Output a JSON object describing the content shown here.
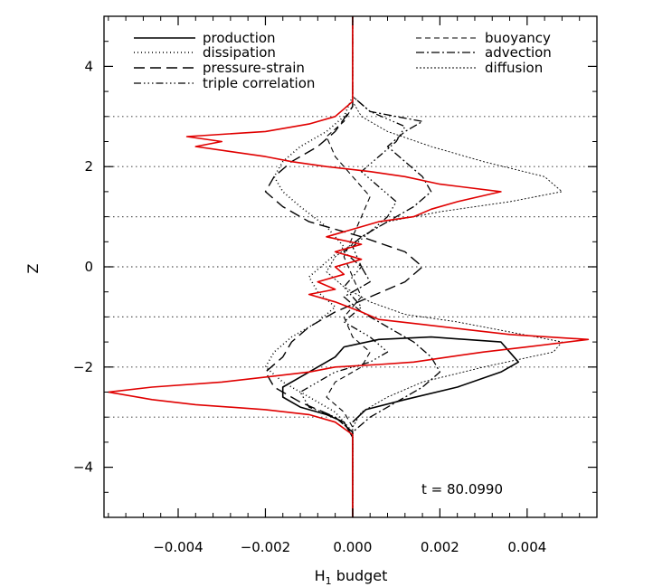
{
  "chart_data": {
    "type": "line",
    "orientation": "vertical-profile",
    "xlabel": "H",
    "xlabel_subscript": "1",
    "xlabel_rest": " budget",
    "ylabel": "Z",
    "xlim": [
      -0.0057,
      0.0056
    ],
    "ylim": [
      -5,
      5
    ],
    "xticks": [
      -0.004,
      -0.002,
      0.0,
      0.002,
      0.004
    ],
    "xtick_labels": [
      "−0.004",
      "−0.002",
      "0.000",
      "0.002",
      "0.004"
    ],
    "yticks": [
      -4,
      -2,
      0,
      2,
      4
    ],
    "ytick_labels": [
      "−4",
      "−2",
      "0",
      "2",
      "4"
    ],
    "reference_lines_z": [
      -3,
      -2,
      -1,
      0,
      1,
      2,
      3
    ],
    "annotation": "t  =  80.0990",
    "legend_placement": "top",
    "series": [
      {
        "name": "production",
        "color": "#000000",
        "dash": "solid",
        "width": 1.6,
        "points": [
          [
            0,
            -5
          ],
          [
            0,
            -3.4
          ],
          [
            -0.0002,
            -3.1
          ],
          [
            -0.0006,
            -2.95
          ],
          [
            -0.0012,
            -2.8
          ],
          [
            -0.0016,
            -2.6
          ],
          [
            -0.0016,
            -2.4
          ],
          [
            -0.0012,
            -2.2
          ],
          [
            -0.0008,
            -2.0
          ],
          [
            -0.0004,
            -1.8
          ],
          [
            -0.0002,
            -1.6
          ],
          [
            0.0006,
            -1.45
          ],
          [
            0.0018,
            -1.4
          ],
          [
            0.0034,
            -1.5
          ],
          [
            0.0036,
            -1.7
          ],
          [
            0.0038,
            -1.9
          ],
          [
            0.0034,
            -2.1
          ],
          [
            0.0024,
            -2.4
          ],
          [
            0.0012,
            -2.65
          ],
          [
            0.0003,
            -2.85
          ],
          [
            0.0,
            -3.1
          ]
        ]
      },
      {
        "name": "dissipation",
        "color": "#000000",
        "dash": "1,3",
        "width": 1.6,
        "points": [
          [
            0,
            -5
          ],
          [
            0,
            -3.3
          ],
          [
            -0.0004,
            -2.9
          ],
          [
            -0.001,
            -2.6
          ],
          [
            -0.0016,
            -2.3
          ],
          [
            -0.002,
            -2.0
          ],
          [
            -0.0018,
            -1.7
          ],
          [
            -0.0014,
            -1.4
          ],
          [
            -0.0008,
            -1.1
          ],
          [
            -0.0004,
            -0.8
          ],
          [
            -0.0008,
            -0.5
          ],
          [
            -0.001,
            -0.2
          ],
          [
            -0.0006,
            0.1
          ],
          [
            -0.0002,
            0.4
          ],
          [
            -0.0006,
            0.8
          ],
          [
            -0.0012,
            1.2
          ],
          [
            -0.0016,
            1.5
          ],
          [
            -0.0018,
            1.8
          ],
          [
            -0.0016,
            2.1
          ],
          [
            -0.0012,
            2.4
          ],
          [
            -0.0006,
            2.7
          ],
          [
            -0.0002,
            3.0
          ],
          [
            0,
            3.4
          ],
          [
            0,
            5
          ]
        ]
      },
      {
        "name": "pressure-strain",
        "color": "#000000",
        "dash": "12,6",
        "width": 1.4,
        "points": [
          [
            0,
            -5
          ],
          [
            0,
            -3.3
          ],
          [
            -0.0004,
            -3.0
          ],
          [
            -0.0012,
            -2.7
          ],
          [
            -0.0018,
            -2.4
          ],
          [
            -0.002,
            -2.1
          ],
          [
            -0.0016,
            -1.8
          ],
          [
            -0.0014,
            -1.5
          ],
          [
            -0.001,
            -1.2
          ],
          [
            -0.0004,
            -0.9
          ],
          [
            0.0004,
            -0.6
          ],
          [
            0.0012,
            -0.3
          ],
          [
            0.0016,
            0.0
          ],
          [
            0.0012,
            0.3
          ],
          [
            0.0002,
            0.6
          ],
          [
            -0.001,
            0.9
          ],
          [
            -0.0016,
            1.2
          ],
          [
            -0.002,
            1.5
          ],
          [
            -0.0018,
            1.8
          ],
          [
            -0.0014,
            2.1
          ],
          [
            -0.0008,
            2.4
          ],
          [
            -0.0004,
            2.7
          ],
          [
            0,
            3.2
          ],
          [
            0,
            5
          ]
        ]
      },
      {
        "name": "triple correlation",
        "color": "#000000",
        "dash": "8,3,1.5,3,1.5,3,1.5,3",
        "width": 1.3,
        "points": [
          [
            0,
            -5
          ],
          [
            0,
            -3.3
          ],
          [
            -0.0004,
            -3.0
          ],
          [
            -0.001,
            -2.8
          ],
          [
            -0.0012,
            -2.5
          ],
          [
            -0.0008,
            -2.3
          ],
          [
            -0.0004,
            -2.1
          ],
          [
            0.0004,
            -1.9
          ],
          [
            0.0008,
            -1.7
          ],
          [
            0.0004,
            -1.4
          ],
          [
            -0.0002,
            -1.1
          ],
          [
            0.0002,
            -0.8
          ],
          [
            -0.0002,
            -0.4
          ],
          [
            0.0002,
            0.0
          ],
          [
            0,
            0.4
          ],
          [
            0.0004,
            0.7
          ],
          [
            0.0008,
            1.0
          ],
          [
            0.001,
            1.3
          ],
          [
            0.0006,
            1.6
          ],
          [
            0.0002,
            1.9
          ],
          [
            0.0006,
            2.2
          ],
          [
            0.001,
            2.5
          ],
          [
            0.0012,
            2.8
          ],
          [
            0.0004,
            3.1
          ],
          [
            0,
            3.4
          ],
          [
            0,
            5
          ]
        ]
      },
      {
        "name": "buoyancy",
        "color": "#000000",
        "dash": "6,4",
        "width": 1.1,
        "points": [
          [
            0,
            -5
          ],
          [
            0,
            -3.2
          ],
          [
            -0.0002,
            -2.9
          ],
          [
            -0.0006,
            -2.6
          ],
          [
            -0.0004,
            -2.3
          ],
          [
            0.0002,
            -2.0
          ],
          [
            0.0004,
            -1.7
          ],
          [
            0,
            -1.4
          ],
          [
            -0.0002,
            -1.0
          ],
          [
            0.0002,
            -0.6
          ],
          [
            0,
            -0.2
          ],
          [
            -0.0002,
            0.2
          ],
          [
            0,
            0.6
          ],
          [
            0.0002,
            1.0
          ],
          [
            0.0004,
            1.4
          ],
          [
            0,
            1.8
          ],
          [
            -0.0004,
            2.2
          ],
          [
            -0.0006,
            2.6
          ],
          [
            -0.0002,
            2.9
          ],
          [
            0,
            3.2
          ],
          [
            0,
            5
          ]
        ]
      },
      {
        "name": "advection",
        "color": "#000000",
        "dash": "9,3,2,3",
        "width": 1.3,
        "points": [
          [
            0,
            -5
          ],
          [
            0,
            -3.3
          ],
          [
            0.0004,
            -3.0
          ],
          [
            0.001,
            -2.7
          ],
          [
            0.0016,
            -2.4
          ],
          [
            0.002,
            -2.1
          ],
          [
            0.0018,
            -1.8
          ],
          [
            0.0014,
            -1.5
          ],
          [
            0.0008,
            -1.2
          ],
          [
            0.0002,
            -0.9
          ],
          [
            -0.0002,
            -0.6
          ],
          [
            0.0004,
            -0.3
          ],
          [
            0.0002,
            0.0
          ],
          [
            -0.0002,
            0.3
          ],
          [
            0.0002,
            0.6
          ],
          [
            0.0008,
            0.9
          ],
          [
            0.0014,
            1.2
          ],
          [
            0.0018,
            1.5
          ],
          [
            0.0016,
            1.8
          ],
          [
            0.0012,
            2.1
          ],
          [
            0.0008,
            2.4
          ],
          [
            0.0012,
            2.7
          ],
          [
            0.0016,
            2.9
          ],
          [
            0.0004,
            3.1
          ],
          [
            0,
            3.4
          ],
          [
            0,
            5
          ]
        ]
      },
      {
        "name": "diffusion",
        "color": "#000000",
        "dash": "2,2",
        "width": 0.9,
        "points": [
          [
            0,
            -5
          ],
          [
            0,
            -3.2
          ],
          [
            0.0002,
            -2.9
          ],
          [
            0.0008,
            -2.6
          ],
          [
            0.0016,
            -2.3
          ],
          [
            0.003,
            -2.0
          ],
          [
            0.0046,
            -1.7
          ],
          [
            0.0048,
            -1.5
          ],
          [
            0.0036,
            -1.3
          ],
          [
            0.0024,
            -1.1
          ],
          [
            0.0012,
            -0.95
          ],
          [
            0.0004,
            -0.7
          ],
          [
            -0.0002,
            -0.4
          ],
          [
            -0.0006,
            -0.1
          ],
          [
            -0.0004,
            0.2
          ],
          [
            0.0002,
            0.6
          ],
          [
            0.0008,
            0.9
          ],
          [
            0.002,
            1.1
          ],
          [
            0.0036,
            1.3
          ],
          [
            0.0048,
            1.5
          ],
          [
            0.0044,
            1.8
          ],
          [
            0.003,
            2.1
          ],
          [
            0.0018,
            2.4
          ],
          [
            0.0008,
            2.7
          ],
          [
            0.0002,
            3.0
          ],
          [
            0,
            3.3
          ],
          [
            0,
            5
          ]
        ]
      },
      {
        "name": "",
        "color": "#e00000",
        "dash": "solid",
        "width": 1.6,
        "points": [
          [
            0,
            -5
          ],
          [
            0,
            -3.35
          ],
          [
            -0.0004,
            -3.1
          ],
          [
            -0.001,
            -2.95
          ],
          [
            -0.002,
            -2.85
          ],
          [
            -0.0036,
            -2.75
          ],
          [
            -0.0046,
            -2.65
          ],
          [
            -0.0056,
            -2.5
          ],
          [
            -0.0046,
            -2.4
          ],
          [
            -0.003,
            -2.3
          ],
          [
            -0.002,
            -2.2
          ],
          [
            -0.001,
            -2.1
          ],
          [
            -0.0004,
            -2.0
          ],
          [
            0.0006,
            -1.95
          ],
          [
            0.0014,
            -1.9
          ],
          [
            0.0022,
            -1.8
          ],
          [
            0.003,
            -1.7
          ],
          [
            0.004,
            -1.6
          ],
          [
            0.0054,
            -1.45
          ],
          [
            0.0036,
            -1.35
          ],
          [
            0.0026,
            -1.25
          ],
          [
            0.0016,
            -1.15
          ],
          [
            0.0006,
            -1.05
          ],
          [
            0.0002,
            -0.9
          ],
          [
            -0.0004,
            -0.7
          ],
          [
            -0.001,
            -0.55
          ],
          [
            -0.0004,
            -0.45
          ],
          [
            -0.0008,
            -0.3
          ],
          [
            -0.0002,
            -0.15
          ],
          [
            -0.0004,
            0.0
          ],
          [
            0.0002,
            0.15
          ],
          [
            -0.0004,
            0.3
          ],
          [
            0.0002,
            0.45
          ],
          [
            -0.0006,
            0.6
          ],
          [
            0,
            0.75
          ],
          [
            0.0006,
            0.9
          ],
          [
            0.0014,
            1.0
          ],
          [
            0.0018,
            1.15
          ],
          [
            0.0024,
            1.3
          ],
          [
            0.0034,
            1.5
          ],
          [
            0.002,
            1.65
          ],
          [
            0.0012,
            1.8
          ],
          [
            0.0004,
            1.9
          ],
          [
            -0.0006,
            2.0
          ],
          [
            -0.0014,
            2.1
          ],
          [
            -0.002,
            2.2
          ],
          [
            -0.0028,
            2.3
          ],
          [
            -0.0036,
            2.4
          ],
          [
            -0.003,
            2.5
          ],
          [
            -0.0038,
            2.6
          ],
          [
            -0.002,
            2.7
          ],
          [
            -0.001,
            2.85
          ],
          [
            -0.0004,
            3.0
          ],
          [
            0,
            3.3
          ],
          [
            0,
            5
          ]
        ]
      }
    ]
  }
}
